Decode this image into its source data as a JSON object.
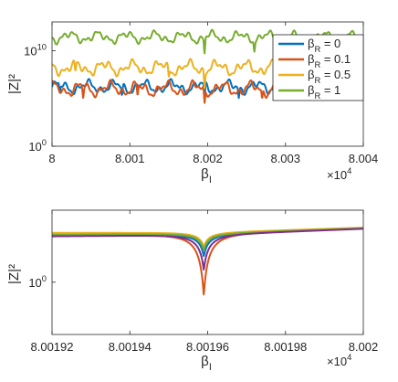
{
  "chart_data": [
    {
      "type": "line",
      "xlabel": "β_I",
      "ylabel": "|Z|²",
      "x_exponent": "×10^4",
      "x_ticks": [
        "8",
        "8.001",
        "8.002",
        "8.003",
        "8.004"
      ],
      "y_ticks": [
        "10^0",
        "10^10"
      ],
      "xlim": [
        8.0,
        8.004
      ],
      "y_scale": "log",
      "ylim_log10": [
        0,
        13
      ],
      "grid": false,
      "legend_position": "top-right",
      "series": [
        {
          "name": "β_R = 0",
          "color": "#0072BD",
          "baseline_log10": 6.2,
          "amplitude": 0.45,
          "dips_x": [
            8.0001,
            8.0009,
            8.00196,
            8.0024,
            8.0031,
            8.0036
          ]
        },
        {
          "name": "β_R = 0.1",
          "color": "#D95319",
          "baseline_log10": 6.0,
          "amplitude": 0.5,
          "dips_x": [
            8.0004,
            8.0011,
            8.00196,
            8.0027,
            8.0034
          ]
        },
        {
          "name": "β_R = 0.5",
          "color": "#EDB120",
          "baseline_log10": 8.2,
          "amplitude": 0.5,
          "dips_x": [
            8.0003,
            8.0015,
            8.00196,
            8.0032
          ]
        },
        {
          "name": "β_R = 1",
          "color": "#77AC30",
          "baseline_log10": 11.4,
          "amplitude": 0.4,
          "dips_x": [
            8.00196,
            8.0026
          ]
        }
      ]
    },
    {
      "type": "line",
      "xlabel": "β_I",
      "ylabel": "|Z|²",
      "x_exponent": "×10^4",
      "x_ticks": [
        "8.00192",
        "8.00194",
        "8.00196",
        "8.00198",
        "8.002"
      ],
      "y_ticks": [
        "10^0"
      ],
      "xlim": [
        8.00192,
        8.002
      ],
      "y_scale": "log",
      "ylim_log10": [
        -0.45,
        0.62
      ],
      "grid": false,
      "dip_x": 8.001959,
      "series": [
        {
          "color": "#0072BD",
          "left_log10": 0.4,
          "min_log10": 0.22,
          "right_log10": 0.465
        },
        {
          "color": "#D95319",
          "left_log10": 0.4,
          "min_log10": -0.12,
          "right_log10": 0.465
        },
        {
          "color": "#EDB120",
          "left_log10": 0.425,
          "min_log10": 0.3,
          "right_log10": 0.47
        },
        {
          "color": "#77AC30",
          "left_log10": 0.41,
          "min_log10": 0.275,
          "right_log10": 0.465
        },
        {
          "color": "#7E2F8E",
          "left_log10": 0.395,
          "min_log10": 0.1,
          "right_log10": 0.46
        }
      ]
    }
  ]
}
